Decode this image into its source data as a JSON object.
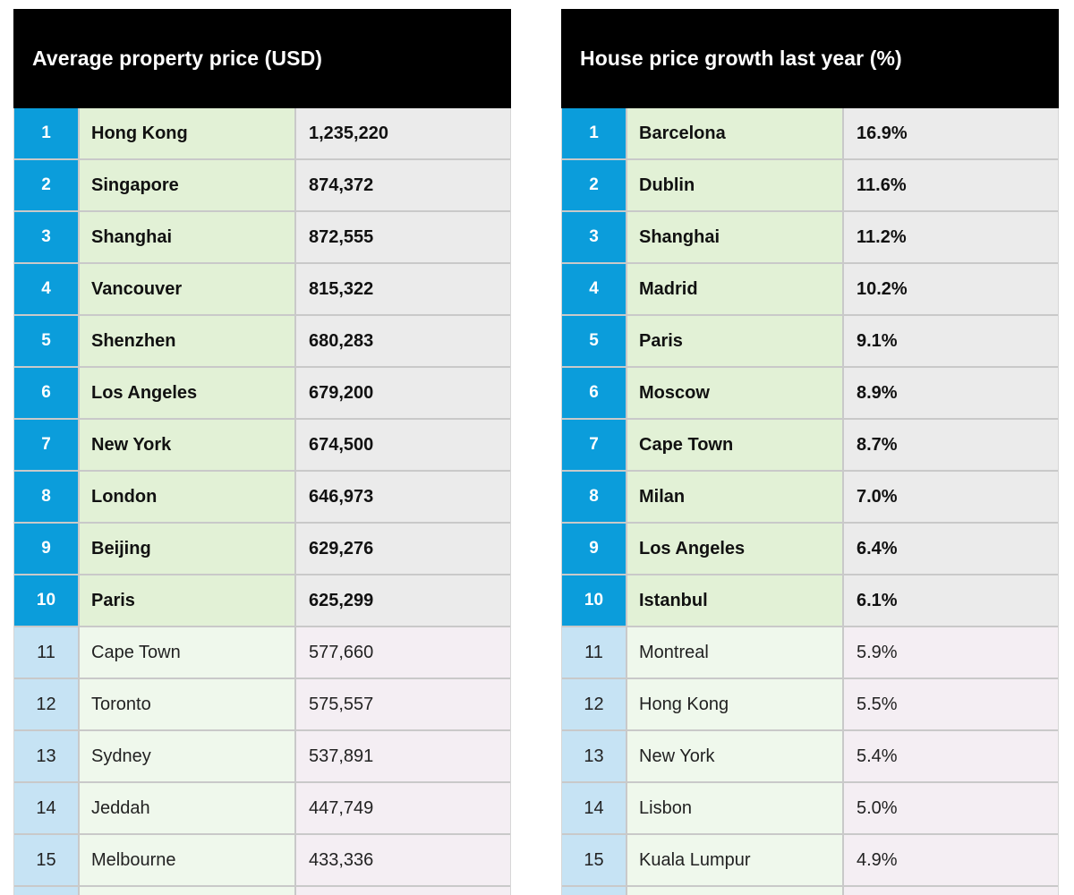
{
  "tables": [
    {
      "title": "Average property price (USD)",
      "rows": [
        {
          "rank": "1",
          "city": "Hong Kong",
          "value": "1,235,220"
        },
        {
          "rank": "2",
          "city": "Singapore",
          "value": "874,372"
        },
        {
          "rank": "3",
          "city": "Shanghai",
          "value": "872,555"
        },
        {
          "rank": "4",
          "city": "Vancouver",
          "value": "815,322"
        },
        {
          "rank": "5",
          "city": "Shenzhen",
          "value": "680,283"
        },
        {
          "rank": "6",
          "city": "Los Angeles",
          "value": "679,200"
        },
        {
          "rank": "7",
          "city": "New York",
          "value": "674,500"
        },
        {
          "rank": "8",
          "city": "London",
          "value": "646,973"
        },
        {
          "rank": "9",
          "city": "Beijing",
          "value": "629,276"
        },
        {
          "rank": "10",
          "city": "Paris",
          "value": "625,299"
        },
        {
          "rank": "11",
          "city": "Cape Town",
          "value": "577,660"
        },
        {
          "rank": "12",
          "city": "Toronto",
          "value": "575,557"
        },
        {
          "rank": "13",
          "city": "Sydney",
          "value": "537,891"
        },
        {
          "rank": "14",
          "city": "Jeddah",
          "value": "447,749"
        },
        {
          "rank": "15",
          "city": "Melbourne",
          "value": "433,336"
        }
      ]
    },
    {
      "title": "House price growth last year (%)",
      "rows": [
        {
          "rank": "1",
          "city": "Barcelona",
          "value": "16.9%"
        },
        {
          "rank": "2",
          "city": "Dublin",
          "value": "11.6%"
        },
        {
          "rank": "3",
          "city": "Shanghai",
          "value": "11.2%"
        },
        {
          "rank": "4",
          "city": "Madrid",
          "value": "10.2%"
        },
        {
          "rank": "5",
          "city": "Paris",
          "value": "9.1%"
        },
        {
          "rank": "6",
          "city": "Moscow",
          "value": "8.9%"
        },
        {
          "rank": "7",
          "city": "Cape Town",
          "value": "8.7%"
        },
        {
          "rank": "8",
          "city": "Milan",
          "value": "7.0%"
        },
        {
          "rank": "9",
          "city": "Los Angeles",
          "value": "6.4%"
        },
        {
          "rank": "10",
          "city": "Istanbul",
          "value": "6.1%"
        },
        {
          "rank": "11",
          "city": "Montreal",
          "value": "5.9%"
        },
        {
          "rank": "12",
          "city": "Hong Kong",
          "value": "5.5%"
        },
        {
          "rank": "13",
          "city": "New York",
          "value": "5.4%"
        },
        {
          "rank": "14",
          "city": "Lisbon",
          "value": "5.0%"
        },
        {
          "rank": "15",
          "city": "Kuala Lumpur",
          "value": "4.9%"
        }
      ]
    }
  ],
  "colors": {
    "header_bg": "#000000",
    "rank_top_bg": "#0b9ddb",
    "rank_rest_bg": "#c6e3f4",
    "city_top_bg": "#e2f1d6",
    "value_top_bg": "#ebebeb"
  }
}
